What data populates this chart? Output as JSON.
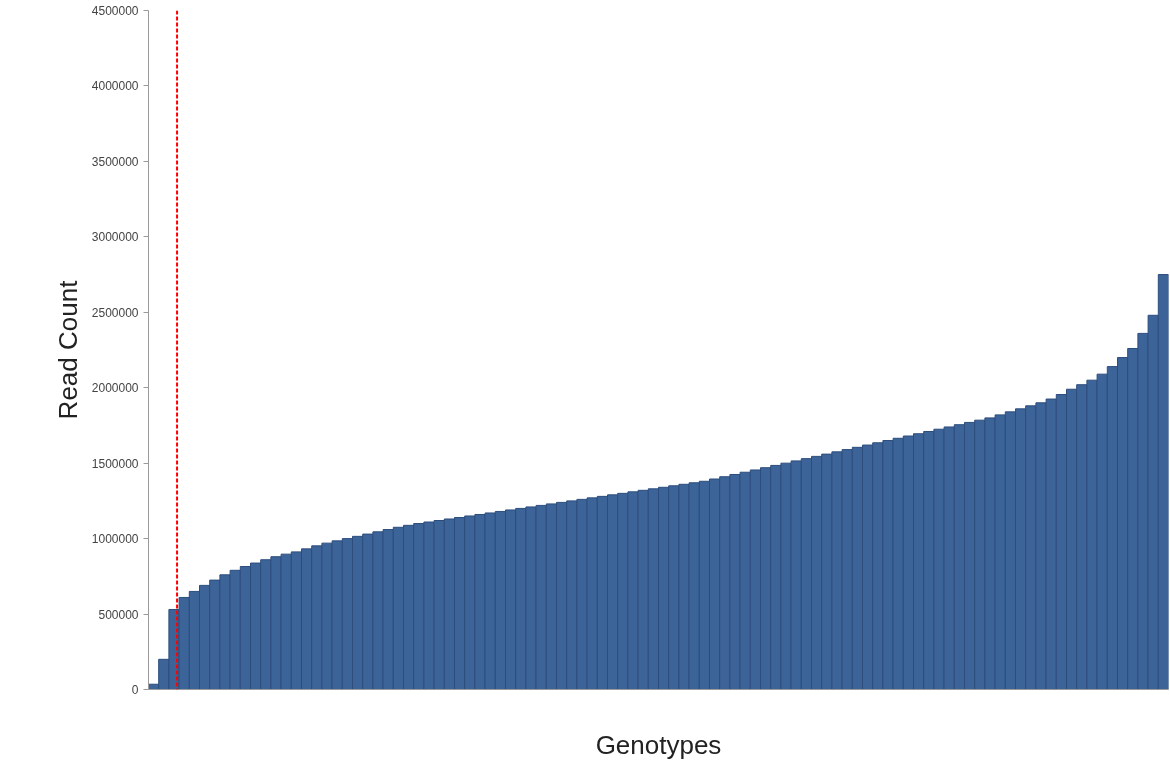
{
  "chart_data": {
    "type": "bar",
    "xlabel": "Genotypes",
    "ylabel": "Read Count",
    "color": "#3d6499",
    "categories": [
      null,
      null,
      null,
      null,
      null,
      null,
      null,
      null,
      null,
      null,
      null,
      null,
      null,
      null,
      null,
      null,
      null,
      null,
      null,
      null,
      null,
      null,
      null,
      null,
      null,
      null,
      null,
      null,
      null,
      null,
      null,
      null,
      null,
      null,
      null,
      null,
      null,
      null,
      null,
      null,
      null,
      null,
      null,
      null,
      null,
      null,
      null,
      null,
      null,
      null,
      null,
      null,
      null,
      null,
      null,
      null,
      null,
      null,
      null,
      null,
      null,
      null,
      null,
      null,
      null,
      null,
      null,
      null,
      null,
      null,
      null,
      null,
      null,
      null,
      null,
      null,
      null,
      null,
      null,
      null,
      null,
      null,
      null,
      null,
      null,
      null,
      null,
      null,
      null,
      null,
      null,
      null,
      null,
      null,
      null,
      null,
      null,
      null,
      null,
      null
    ],
    "values": [
      35000,
      200000,
      530000,
      610000,
      650000,
      690000,
      725000,
      760000,
      790000,
      815000,
      838000,
      860000,
      880000,
      897000,
      912000,
      932000,
      952000,
      970000,
      985000,
      1000000,
      1015000,
      1030000,
      1045000,
      1060000,
      1075000,
      1088000,
      1100000,
      1110000,
      1120000,
      1130000,
      1140000,
      1150000,
      1160000,
      1170000,
      1180000,
      1190000,
      1200000,
      1210000,
      1220000,
      1230000,
      1240000,
      1250000,
      1260000,
      1270000,
      1280000,
      1290000,
      1300000,
      1310000,
      1320000,
      1330000,
      1340000,
      1350000,
      1360000,
      1370000,
      1380000,
      1395000,
      1410000,
      1425000,
      1440000,
      1455000,
      1470000,
      1485000,
      1500000,
      1515000,
      1530000,
      1545000,
      1560000,
      1575000,
      1590000,
      1605000,
      1620000,
      1635000,
      1650000,
      1665000,
      1680000,
      1695000,
      1710000,
      1725000,
      1740000,
      1755000,
      1770000,
      1785000,
      1800000,
      1820000,
      1840000,
      1860000,
      1880000,
      1900000,
      1925000,
      1955000,
      1990000,
      2020000,
      2050000,
      2090000,
      2140000,
      2200000,
      2260000,
      2360000,
      2480000,
      2750000
    ],
    "ylim": [
      0,
      4500000
    ],
    "yticks": [
      0,
      500000,
      1000000,
      1500000,
      2000000,
      2500000,
      3000000,
      3500000,
      4000000,
      4500000
    ],
    "tick_labels": "y",
    "grid": false
  }
}
